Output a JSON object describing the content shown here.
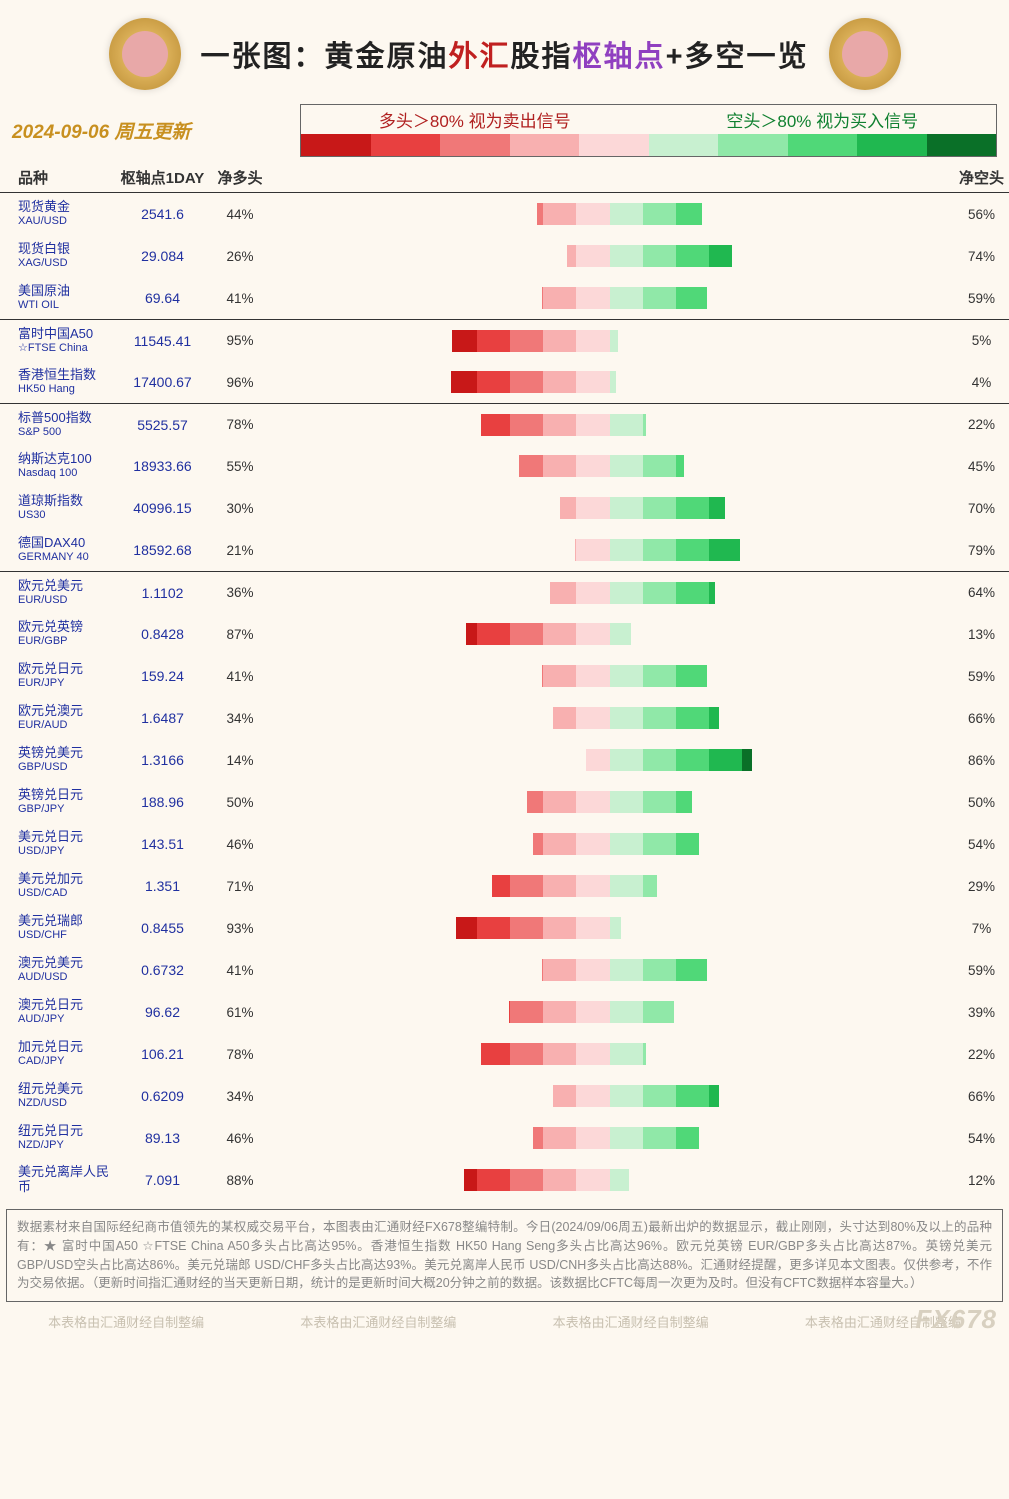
{
  "title": {
    "prefix": "一张图：黄金原油",
    "red": "外汇",
    "mid": "股指",
    "purple": "枢轴点",
    "suffix": "+多空一览"
  },
  "date_line": "2024-09-06 周五更新",
  "legend": {
    "long_signal": "多头＞80% 视为卖出信号",
    "short_signal": "空头＞80% 视为买入信号",
    "swatches": [
      "#c81818",
      "#e84040",
      "#f07878",
      "#f8b0b0",
      "#fcd8d8",
      "#c8f0d0",
      "#90e8a8",
      "#50d878",
      "#20b850",
      "#0a7028"
    ]
  },
  "columns": {
    "instrument": "品种",
    "pivot": "枢轴点1DAY",
    "net_long": "净多头",
    "net_short": "净空头"
  },
  "chart": {
    "bar_half_max_pct": 48,
    "long_colors_desc": [
      "#c81818",
      "#e84040",
      "#f07878",
      "#f8b0b0",
      "#fcd8d8"
    ],
    "short_colors_desc": [
      "#0a7028",
      "#20b850",
      "#50d878",
      "#90e8a8",
      "#c8f0d0"
    ]
  },
  "groups": [
    {
      "rows": [
        {
          "name_cn": "现货黄金",
          "name_en": "XAU/USD",
          "pivot": "2541.6",
          "long": 44,
          "short": 56
        },
        {
          "name_cn": "现货白银",
          "name_en": "XAG/USD",
          "pivot": "29.084",
          "long": 26,
          "short": 74
        },
        {
          "name_cn": "美国原油",
          "name_en": "WTI OIL",
          "pivot": "69.64",
          "long": 41,
          "short": 59
        }
      ]
    },
    {
      "rows": [
        {
          "name_cn": "富时中国A50",
          "name_en": "☆FTSE China",
          "pivot": "11545.41",
          "long": 95,
          "short": 5
        },
        {
          "name_cn": "香港恒生指数",
          "name_en": "HK50 Hang",
          "pivot": "17400.67",
          "long": 96,
          "short": 4
        }
      ]
    },
    {
      "rows": [
        {
          "name_cn": "标普500指数",
          "name_en": "S&P 500",
          "pivot": "5525.57",
          "long": 78,
          "short": 22
        },
        {
          "name_cn": "纳斯达克100",
          "name_en": "Nasdaq 100",
          "pivot": "18933.66",
          "long": 55,
          "short": 45
        },
        {
          "name_cn": "道琼斯指数",
          "name_en": "US30",
          "pivot": "40996.15",
          "long": 30,
          "short": 70
        },
        {
          "name_cn": "德国DAX40",
          "name_en": "GERMANY 40",
          "pivot": "18592.68",
          "long": 21,
          "short": 79
        }
      ]
    },
    {
      "rows": [
        {
          "name_cn": "欧元兑美元",
          "name_en": "EUR/USD",
          "pivot": "1.1102",
          "long": 36,
          "short": 64
        },
        {
          "name_cn": "欧元兑英镑",
          "name_en": "EUR/GBP",
          "pivot": "0.8428",
          "long": 87,
          "short": 13
        },
        {
          "name_cn": "欧元兑日元",
          "name_en": "EUR/JPY",
          "pivot": "159.24",
          "long": 41,
          "short": 59
        },
        {
          "name_cn": "欧元兑澳元",
          "name_en": "EUR/AUD",
          "pivot": "1.6487",
          "long": 34,
          "short": 66
        },
        {
          "name_cn": "英镑兑美元",
          "name_en": "GBP/USD",
          "pivot": "1.3166",
          "long": 14,
          "short": 86
        },
        {
          "name_cn": "英镑兑日元",
          "name_en": "GBP/JPY",
          "pivot": "188.96",
          "long": 50,
          "short": 50
        },
        {
          "name_cn": "美元兑日元",
          "name_en": "USD/JPY",
          "pivot": "143.51",
          "long": 46,
          "short": 54
        },
        {
          "name_cn": "美元兑加元",
          "name_en": "USD/CAD",
          "pivot": "1.351",
          "long": 71,
          "short": 29
        },
        {
          "name_cn": "美元兑瑞郎",
          "name_en": "USD/CHF",
          "pivot": "0.8455",
          "long": 93,
          "short": 7
        },
        {
          "name_cn": "澳元兑美元",
          "name_en": "AUD/USD",
          "pivot": "0.6732",
          "long": 41,
          "short": 59
        },
        {
          "name_cn": "澳元兑日元",
          "name_en": "AUD/JPY",
          "pivot": "96.62",
          "long": 61,
          "short": 39
        },
        {
          "name_cn": "加元兑日元",
          "name_en": "CAD/JPY",
          "pivot": "106.21",
          "long": 78,
          "short": 22
        },
        {
          "name_cn": "纽元兑美元",
          "name_en": "NZD/USD",
          "pivot": "0.6209",
          "long": 34,
          "short": 66
        },
        {
          "name_cn": "纽元兑日元",
          "name_en": "NZD/JPY",
          "pivot": "89.13",
          "long": 46,
          "short": 54
        },
        {
          "name_cn": "美元兑离岸人民币",
          "name_en": "",
          "pivot": "7.091",
          "long": 88,
          "short": 12
        }
      ]
    }
  ],
  "footer": "数据素材来自国际经纪商市值领先的某权威交易平台，本图表由汇通财经FX678整编特制。今日(2024/09/06周五)最新出炉的数据显示，截止刚刚，头寸达到80%及以上的品种有：★ 富时中国A50 ☆FTSE China A50多头占比高达95%。香港恒生指数 HK50 Hang Seng多头占比高达96%。欧元兑英镑 EUR/GBP多头占比高达87%。英镑兑美元 GBP/USD空头占比高达86%。美元兑瑞郎 USD/CHF多头占比高达93%。美元兑离岸人民币 USD/CNH多头占比高达88%。汇通财经提醒，更多详见本文图表。仅供参考，不作为交易依据。（更新时间指汇通财经的当天更新日期，统计的是更新时间大概20分钟之前的数据。该数据比CFTC每周一次更为及时。但没有CFTC数据样本容量大。）",
  "watermark_repeat": "本表格由汇通财经自制整编",
  "brand_mark": "FX678"
}
